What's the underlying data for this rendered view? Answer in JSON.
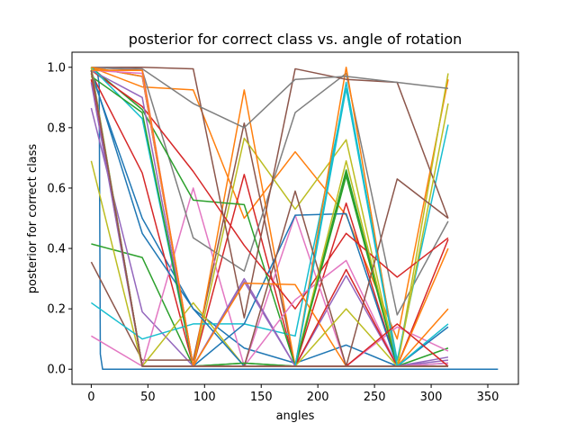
{
  "chart_data": {
    "type": "line",
    "title": "posterior for correct class vs. angle of rotation",
    "xlabel": "angles",
    "ylabel": "posterior for correct class",
    "xlim": [
      -17,
      377
    ],
    "ylim": [
      -0.05,
      1.05
    ],
    "xticks": [
      0,
      50,
      100,
      150,
      200,
      250,
      300,
      350
    ],
    "yticks": [
      0.0,
      0.2,
      0.4,
      0.6,
      0.8,
      1.0
    ],
    "ytick_labels": [
      "0.0",
      "0.2",
      "0.4",
      "0.6",
      "0.8",
      "1.0"
    ],
    "grid": false,
    "legend": "none",
    "x": [
      0,
      45,
      90,
      135,
      180,
      225,
      270,
      315
    ],
    "series": [
      {
        "color": "#1f77b4",
        "x": [
          0,
          3,
          5,
          6,
          7,
          8,
          10,
          15,
          30,
          60,
          100,
          150,
          200,
          250,
          300,
          359
        ],
        "values": [
          1.0,
          0.99,
          0.98,
          0.97,
          0.94,
          0.05,
          0.0,
          0.0,
          0.0,
          0.0,
          0.0,
          0.0,
          0.0,
          0.0,
          0.0,
          0.0
        ]
      },
      {
        "color": "#1f77b4",
        "values": [
          0.98,
          0.5,
          0.2,
          0.07,
          0.02,
          0.08,
          0.01,
          0.02
        ]
      },
      {
        "color": "#ff7f0e",
        "values": [
          1.0,
          0.935,
          0.925,
          0.5,
          0.72,
          0.51,
          0.1,
          0.96
        ]
      },
      {
        "color": "#2ca02c",
        "values": [
          0.415,
          0.37,
          0.01,
          0.02,
          0.01,
          0.64,
          0.01,
          0.07
        ]
      },
      {
        "color": "#d62728",
        "values": [
          0.98,
          0.65,
          0.01,
          0.645,
          0.01,
          0.55,
          0.01,
          0.43
        ]
      },
      {
        "color": "#9467bd",
        "values": [
          0.865,
          0.19,
          0.01,
          0.29,
          0.01,
          0.31,
          0.01,
          0.03
        ]
      },
      {
        "color": "#8c564b",
        "values": [
          0.355,
          0.03,
          0.03,
          0.815,
          0.01,
          0.01,
          0.01,
          0.01
        ]
      },
      {
        "color": "#e377c2",
        "values": [
          0.11,
          0.01,
          0.6,
          0.01,
          0.51,
          0.01,
          0.14,
          0.06
        ]
      },
      {
        "color": "#7f7f7f",
        "values": [
          1.0,
          0.99,
          0.435,
          0.325,
          0.85,
          0.98,
          0.18,
          0.49
        ]
      },
      {
        "color": "#bcbd22",
        "values": [
          0.69,
          0.01,
          0.01,
          0.765,
          0.53,
          0.76,
          0.01,
          0.98
        ]
      },
      {
        "color": "#17becf",
        "values": [
          0.22,
          0.1,
          0.15,
          0.15,
          0.11,
          0.93,
          0.03,
          0.81
        ]
      },
      {
        "color": "#1f77b4",
        "values": [
          1.0,
          0.97,
          0.01,
          0.15,
          0.51,
          0.515,
          0.01,
          0.14
        ]
      },
      {
        "color": "#ff7f0e",
        "values": [
          0.99,
          0.99,
          0.01,
          0.925,
          0.01,
          1.0,
          0.01,
          0.4
        ]
      },
      {
        "color": "#2ca02c",
        "values": [
          1.0,
          0.86,
          0.56,
          0.545,
          0.01,
          0.66,
          0.01,
          0.01
        ]
      },
      {
        "color": "#d62728",
        "values": [
          0.99,
          0.87,
          0.655,
          0.41,
          0.2,
          0.45,
          0.305,
          0.435
        ]
      },
      {
        "color": "#9467bd",
        "values": [
          0.99,
          0.9,
          0.01,
          0.3,
          0.01,
          0.01,
          0.01,
          0.04
        ]
      },
      {
        "color": "#8c564b",
        "values": [
          1.0,
          1.0,
          0.995,
          0.17,
          0.995,
          0.96,
          0.95,
          0.5
        ]
      },
      {
        "color": "#e377c2",
        "values": [
          1.0,
          0.995,
          0.01,
          0.01,
          0.23,
          0.36,
          0.01,
          0.02
        ]
      },
      {
        "color": "#7f7f7f",
        "values": [
          1.0,
          0.995,
          0.88,
          0.8,
          0.96,
          0.97,
          0.95,
          0.93
        ]
      },
      {
        "color": "#bcbd22",
        "values": [
          0.98,
          0.01,
          0.22,
          0.01,
          0.01,
          0.69,
          0.01,
          0.88
        ]
      },
      {
        "color": "#17becf",
        "values": [
          1.0,
          0.83,
          0.01,
          0.01,
          0.01,
          0.95,
          0.01,
          0.01
        ]
      },
      {
        "color": "#1f77b4",
        "values": [
          0.99,
          0.45,
          0.2,
          0.01,
          0.01,
          0.01,
          0.01,
          0.01
        ]
      },
      {
        "color": "#ff7f0e",
        "values": [
          1.0,
          0.97,
          0.01,
          0.285,
          0.28,
          0.01,
          0.01,
          0.2
        ]
      },
      {
        "color": "#2ca02c",
        "values": [
          0.97,
          0.85,
          0.01,
          0.01,
          0.01,
          0.65,
          0.01,
          0.01
        ]
      },
      {
        "color": "#d62728",
        "values": [
          0.96,
          0.01,
          0.01,
          0.01,
          0.01,
          0.33,
          0.01,
          0.01
        ]
      },
      {
        "color": "#9467bd",
        "values": [
          0.95,
          0.01,
          0.01,
          0.01,
          0.01,
          0.01,
          0.01,
          0.01
        ]
      },
      {
        "color": "#8c564b",
        "values": [
          0.99,
          0.01,
          0.01,
          0.01,
          0.59,
          0.01,
          0.63,
          0.5
        ]
      },
      {
        "color": "#e377c2",
        "values": [
          0.99,
          0.98,
          0.01,
          0.01,
          0.01,
          0.01,
          0.01,
          0.01
        ]
      },
      {
        "color": "#7f7f7f",
        "values": [
          0.99,
          0.01,
          0.01,
          0.01,
          0.01,
          0.01,
          0.01,
          0.01
        ]
      },
      {
        "color": "#bcbd22",
        "values": [
          0.99,
          0.01,
          0.01,
          0.01,
          0.01,
          0.2,
          0.01,
          0.01
        ]
      },
      {
        "color": "#17becf",
        "values": [
          1.0,
          0.01,
          0.01,
          0.01,
          0.01,
          0.93,
          0.01,
          0.15
        ]
      },
      {
        "color": "#1f77b4",
        "values": [
          0.99,
          0.01,
          0.01,
          0.01,
          0.01,
          0.01,
          0.01,
          0.01
        ]
      },
      {
        "color": "#ff7f0e",
        "values": [
          0.99,
          0.99,
          0.01,
          0.01,
          0.01,
          0.01,
          0.01,
          0.01
        ]
      },
      {
        "color": "#2ca02c",
        "values": [
          0.99,
          0.01,
          0.01,
          0.02,
          0.01,
          0.01,
          0.01,
          0.01
        ]
      },
      {
        "color": "#d62728",
        "values": [
          0.99,
          0.01,
          0.01,
          0.01,
          0.01,
          0.01,
          0.15,
          0.01
        ]
      },
      {
        "color": "#bcbd22",
        "values": [
          1.0,
          0.01,
          0.01,
          0.01,
          0.01,
          0.01,
          0.01,
          0.01
        ]
      },
      {
        "color": "#e377c2",
        "values": [
          0.99,
          0.01,
          0.01,
          0.01,
          0.01,
          0.01,
          0.01,
          0.01
        ]
      },
      {
        "color": "#8c564b",
        "values": [
          0.99,
          0.01,
          0.01,
          0.01,
          0.01,
          0.01,
          0.01,
          0.01
        ]
      }
    ]
  }
}
